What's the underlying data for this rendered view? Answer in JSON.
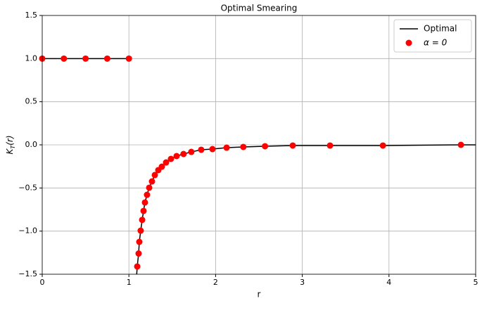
{
  "chart_data": {
    "type": "line",
    "title": "Optimal Smearing",
    "xlabel": "r",
    "ylabel": "K_T(r)",
    "xlim": [
      0,
      5
    ],
    "ylim": [
      -1.5,
      1.5
    ],
    "xticks": [
      0,
      1,
      2,
      3,
      4,
      5
    ],
    "yticks": [
      {
        "value": -1.5,
        "label": "−1.5"
      },
      {
        "value": -1.0,
        "label": "−1.0"
      },
      {
        "value": -0.5,
        "label": "−0.5"
      },
      {
        "value": 0,
        "label": "0.0"
      },
      {
        "value": 0.5,
        "label": "0.5"
      },
      {
        "value": 1.0,
        "label": "1.0"
      },
      {
        "value": 1.5,
        "label": "1.5"
      }
    ],
    "grid": true,
    "legend": "upper right",
    "series": [
      {
        "name": "Optimal",
        "color": "#000000",
        "kind": "line",
        "x": [
          0,
          1,
          1.05,
          1.09,
          1.096,
          1.112,
          1.12,
          1.136,
          1.153,
          1.169,
          1.185,
          1.209,
          1.234,
          1.266,
          1.299,
          1.339,
          1.38,
          1.429,
          1.485,
          1.55,
          1.63,
          1.72,
          1.834,
          1.964,
          2.127,
          2.32,
          2.57,
          2.89,
          3.32,
          3.93,
          4.83,
          5
        ],
        "values": [
          1,
          1,
          null,
          -1.5,
          -1.41,
          -1.26,
          -1.125,
          -0.995,
          -0.87,
          -0.766,
          -0.668,
          -0.579,
          -0.497,
          -0.424,
          -0.35,
          -0.293,
          -0.253,
          -0.204,
          -0.163,
          -0.13,
          -0.106,
          -0.082,
          -0.057,
          -0.049,
          -0.033,
          -0.024,
          -0.016,
          -0.008,
          -0.008,
          -0.008,
          0,
          0
        ]
      },
      {
        "name": "α = 0",
        "color": "#ff0000",
        "kind": "scatter",
        "x": [
          0,
          0.25,
          0.5,
          0.75,
          1.0,
          1.096,
          1.112,
          1.12,
          1.136,
          1.153,
          1.169,
          1.185,
          1.209,
          1.234,
          1.266,
          1.299,
          1.339,
          1.38,
          1.429,
          1.485,
          1.55,
          1.63,
          1.72,
          1.834,
          1.964,
          2.127,
          2.32,
          2.57,
          2.89,
          3.32,
          3.93,
          4.83
        ],
        "values": [
          1,
          1,
          1,
          1,
          1,
          -1.41,
          -1.26,
          -1.125,
          -0.995,
          -0.87,
          -0.766,
          -0.668,
          -0.579,
          -0.497,
          -0.424,
          -0.35,
          -0.293,
          -0.253,
          -0.204,
          -0.163,
          -0.13,
          -0.106,
          -0.082,
          -0.057,
          -0.049,
          -0.033,
          -0.024,
          -0.016,
          -0.008,
          -0.008,
          -0.008,
          0
        ]
      }
    ]
  }
}
